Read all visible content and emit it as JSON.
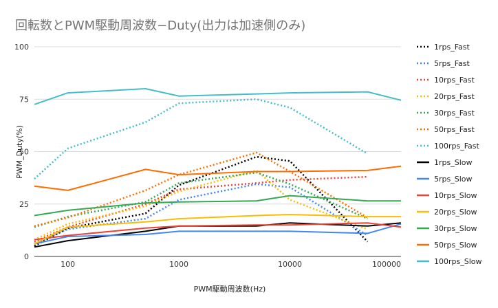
{
  "chart_data": {
    "type": "line",
    "title": "回転数とPWM駆動周波数−Duty(出力は加速側のみ)",
    "xlabel": "PWM駆動周波数(Hz)",
    "ylabel": "PWM_Duty(%)",
    "x_scale": "log",
    "xlim": [
      50,
      100000
    ],
    "ylim": [
      0,
      100
    ],
    "x": [
      50,
      100,
      500,
      1000,
      5000,
      10000,
      50000,
      100000
    ],
    "x_tick_values": [
      100,
      1000,
      10000,
      100000
    ],
    "x_tick_labels": [
      "100",
      "1000",
      "10000",
      "100000"
    ],
    "y_tick_values": [
      0,
      25,
      50,
      75,
      100
    ],
    "y_tick_labels": [
      "0",
      "25",
      "50",
      "75",
      "100"
    ],
    "grid": "horizontal",
    "legend_position": "right",
    "series": [
      {
        "name": "1rps_Fast",
        "color": "#000000",
        "dash": "dotted",
        "values": [
          5,
          13.5,
          20.5,
          34,
          47.5,
          45.5,
          7,
          null
        ]
      },
      {
        "name": "5rps_Fast",
        "color": "#4285f4",
        "dash": "dotted",
        "values": [
          6,
          13,
          18,
          27,
          34.5,
          33,
          10,
          null
        ]
      },
      {
        "name": "10rps_Fast",
        "color": "#ea4335",
        "dash": "dotted",
        "values": [
          7,
          14,
          25,
          32,
          35,
          36.5,
          38,
          null
        ]
      },
      {
        "name": "20rps_Fast",
        "color": "#fbbc04",
        "dash": "dotted",
        "values": [
          8,
          15.5,
          24,
          31,
          41,
          27,
          13,
          null
        ]
      },
      {
        "name": "30rps_Fast",
        "color": "#34a853",
        "dash": "dotted",
        "values": [
          14,
          19,
          26,
          35,
          40,
          34.5,
          18,
          null
        ]
      },
      {
        "name": "50rps_Fast",
        "color": "#ff6d01",
        "dash": "dotted",
        "values": [
          14.5,
          18.5,
          31.5,
          39,
          49.5,
          40.5,
          18.5,
          null
        ]
      },
      {
        "name": "100rps_Fast",
        "color": "#46bdc6",
        "dash": "dotted",
        "values": [
          37,
          51.5,
          64,
          73,
          75,
          71,
          49,
          null
        ]
      },
      {
        "name": "1rps_Slow",
        "color": "#000000",
        "dash": "solid",
        "values": [
          4.5,
          7.5,
          12,
          14.5,
          14.5,
          16,
          14.5,
          16
        ]
      },
      {
        "name": "5rps_Slow",
        "color": "#4285f4",
        "dash": "solid",
        "values": [
          6,
          9.5,
          10.5,
          12,
          12,
          12,
          11,
          15.5
        ]
      },
      {
        "name": "10rps_Slow",
        "color": "#ea4335",
        "dash": "solid",
        "values": [
          8,
          10,
          13.5,
          14.5,
          15,
          15,
          16,
          14
        ]
      },
      {
        "name": "20rps_Slow",
        "color": "#fbbc04",
        "dash": "solid",
        "values": [
          6,
          14,
          16.5,
          18,
          19.5,
          20,
          19,
          19
        ]
      },
      {
        "name": "30rps_Slow",
        "color": "#34a853",
        "dash": "solid",
        "values": [
          19.5,
          22,
          25.5,
          26,
          26.5,
          29,
          26.5,
          26.5
        ]
      },
      {
        "name": "50rps_Slow",
        "color": "#ff6d01",
        "dash": "solid",
        "values": [
          33.5,
          31.5,
          41.5,
          39,
          40.5,
          40.5,
          41,
          43
        ]
      },
      {
        "name": "100rps_Slow",
        "color": "#46bdc6",
        "dash": "solid",
        "values": [
          72.5,
          78,
          80,
          76.5,
          77.5,
          78,
          78.5,
          74.5
        ]
      }
    ]
  }
}
